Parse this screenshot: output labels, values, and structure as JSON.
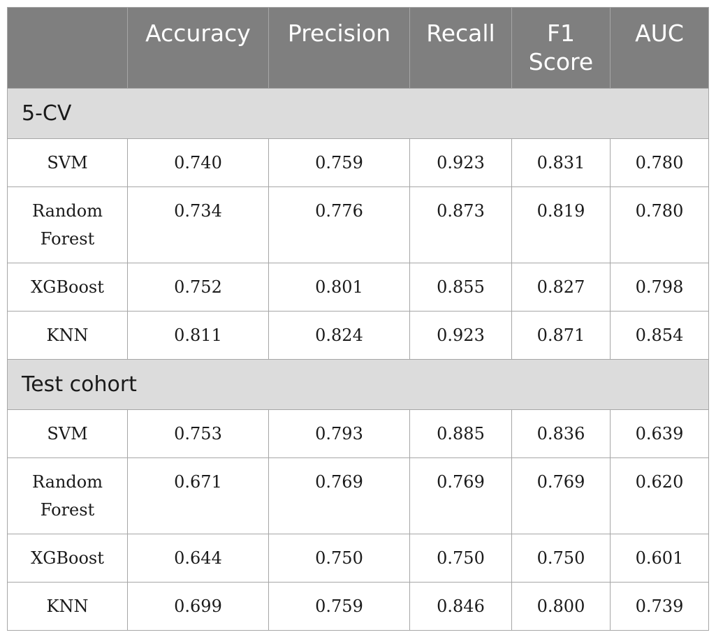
{
  "table": {
    "headers": [
      "",
      "Accuracy",
      "Precision",
      "Recall",
      "F1 Score",
      "AUC"
    ],
    "sections": [
      {
        "title": "5-CV",
        "rows": [
          {
            "model": "SVM",
            "values": [
              "0.740",
              "0.759",
              "0.923",
              "0.831",
              "0.780"
            ]
          },
          {
            "model": "Random Forest",
            "values": [
              "0.734",
              "0.776",
              "0.873",
              "0.819",
              "0.780"
            ]
          },
          {
            "model": "XGBoost",
            "values": [
              "0.752",
              "0.801",
              "0.855",
              "0.827",
              "0.798"
            ]
          },
          {
            "model": "KNN",
            "values": [
              "0.811",
              "0.824",
              "0.923",
              "0.871",
              "0.854"
            ]
          }
        ]
      },
      {
        "title": "Test cohort",
        "rows": [
          {
            "model": "SVM",
            "values": [
              "0.753",
              "0.793",
              "0.885",
              "0.836",
              "0.639"
            ]
          },
          {
            "model": "Random Forest",
            "values": [
              "0.671",
              "0.769",
              "0.769",
              "0.769",
              "0.620"
            ]
          },
          {
            "model": "XGBoost",
            "values": [
              "0.644",
              "0.750",
              "0.750",
              "0.750",
              "0.601"
            ]
          },
          {
            "model": "KNN",
            "values": [
              "0.699",
              "0.759",
              "0.846",
              "0.800",
              "0.739"
            ]
          }
        ]
      }
    ]
  }
}
